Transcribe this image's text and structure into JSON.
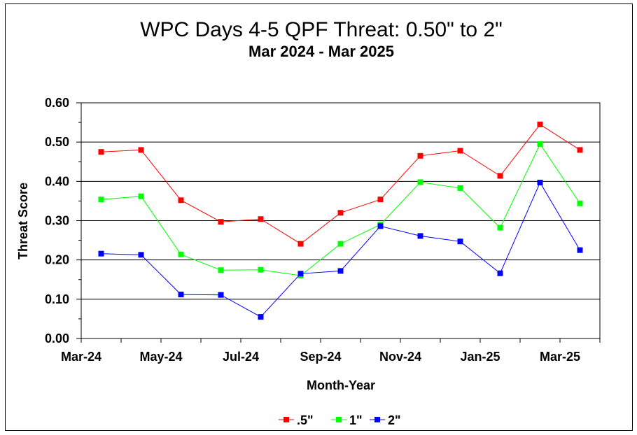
{
  "chart_data": {
    "type": "line",
    "title": "WPC Days 4-5 QPF Threat:  0.50\" to 2\"",
    "subtitle": "Mar 2024 - Mar 2025",
    "xlabel": "Month-Year",
    "ylabel": "Threat Score",
    "x": [
      "Mar-24",
      "Apr-24",
      "May-24",
      "Jun-24",
      "Jul-24",
      "Aug-24",
      "Sep-24",
      "Oct-24",
      "Nov-24",
      "Dec-24",
      "Jan-25",
      "Feb-25",
      "Mar-25"
    ],
    "x_tick_labels": [
      "Mar-24",
      "May-24",
      "Jul-24",
      "Sep-24",
      "Nov-24",
      "Jan-25",
      "Mar-25"
    ],
    "y_tick_labels": [
      "0.00",
      "0.10",
      "0.20",
      "0.30",
      "0.40",
      "0.50",
      "0.60"
    ],
    "ylim": [
      0,
      0.6
    ],
    "grid": "horizontal",
    "legend_position": "bottom-center",
    "series": [
      {
        "name": ".5\"",
        "color": "#ff0000",
        "values": [
          0.475,
          0.48,
          0.352,
          0.297,
          0.304,
          0.241,
          0.32,
          0.354,
          0.465,
          0.478,
          0.414,
          0.545,
          0.48
        ]
      },
      {
        "name": "1\"",
        "color": "#00ff00",
        "values": [
          0.354,
          0.362,
          0.214,
          0.174,
          0.175,
          0.16,
          0.241,
          0.29,
          0.398,
          0.383,
          0.282,
          0.495,
          0.344
        ]
      },
      {
        "name": "2\"",
        "color": "#0000ff",
        "values": [
          0.216,
          0.213,
          0.112,
          0.111,
          0.055,
          0.165,
          0.172,
          0.286,
          0.261,
          0.247,
          0.166,
          0.397,
          0.225
        ]
      }
    ]
  }
}
